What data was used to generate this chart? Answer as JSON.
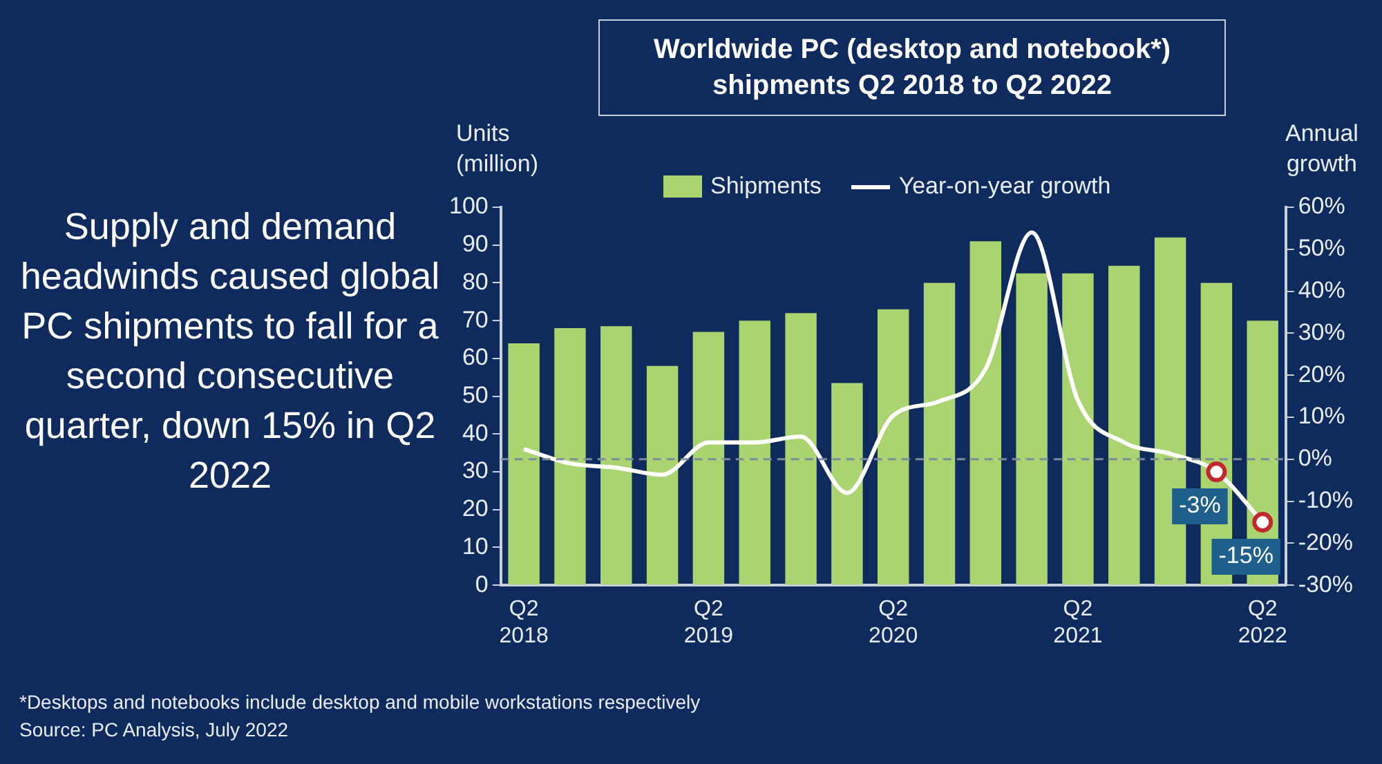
{
  "chart_data": {
    "type": "bar",
    "title": "Worldwide PC (desktop and notebook*) shipments Q2 2018 to Q2 2022",
    "categories": [
      "Q2\n2018",
      null,
      null,
      null,
      "Q2\n2019",
      null,
      null,
      null,
      "Q2\n2020",
      null,
      null,
      null,
      "Q2\n2021",
      null,
      null,
      null,
      "Q2\n2022"
    ],
    "series": [
      {
        "name": "Shipments",
        "color": "#a9d46f",
        "values": [
          64,
          68,
          68.5,
          58,
          67,
          70,
          72,
          53.5,
          73,
          80,
          91,
          82.5,
          82.5,
          84.5,
          92,
          80,
          70
        ]
      },
      {
        "name": "Year-on-year growth",
        "type": "line",
        "axis": "y2",
        "color": "#ffffff",
        "values": [
          2.4,
          -1,
          -2,
          -3.7,
          4,
          4,
          5.4,
          -8,
          10.4,
          13.8,
          21.5,
          54,
          14,
          4,
          1.3,
          -3,
          -15
        ],
        "value_labels": [
          null,
          null,
          null,
          null,
          null,
          null,
          null,
          null,
          null,
          null,
          null,
          null,
          null,
          null,
          null,
          "-3%",
          "-15%"
        ]
      }
    ],
    "ylabel": "Units\n(million)",
    "y2label": "Annual\ngrowth",
    "ylim": [
      0,
      100
    ],
    "yticks": [
      0,
      10,
      20,
      30,
      40,
      50,
      60,
      70,
      80,
      90,
      100
    ],
    "y2lim": [
      -30,
      60
    ],
    "y2ticks": [
      {
        "value": -30,
        "label": "-30%"
      },
      {
        "value": -20,
        "label": "-20%"
      },
      {
        "value": -10,
        "label": "-10%"
      },
      {
        "value": 0,
        "label": "0%"
      },
      {
        "value": 10,
        "label": "10%"
      },
      {
        "value": 20,
        "label": "20%"
      },
      {
        "value": 30,
        "label": "30%"
      },
      {
        "value": 40,
        "label": "40%"
      },
      {
        "value": 50,
        "label": "50%"
      },
      {
        "value": 60,
        "label": "60%"
      }
    ],
    "ref_lines": [
      {
        "axis": "y2",
        "value": 0,
        "color": "#7f8c9d",
        "line_style": "dashed"
      }
    ],
    "grid": false,
    "legend": "top",
    "annotations": [
      "Supply and demand headwinds caused global PC shipments to fall for a second consecutive quarter, down 15% in Q2 2022",
      "*Desktops and notebooks include desktop and mobile workstations respectively",
      "Source: PC Analysis, July 2022"
    ]
  }
}
